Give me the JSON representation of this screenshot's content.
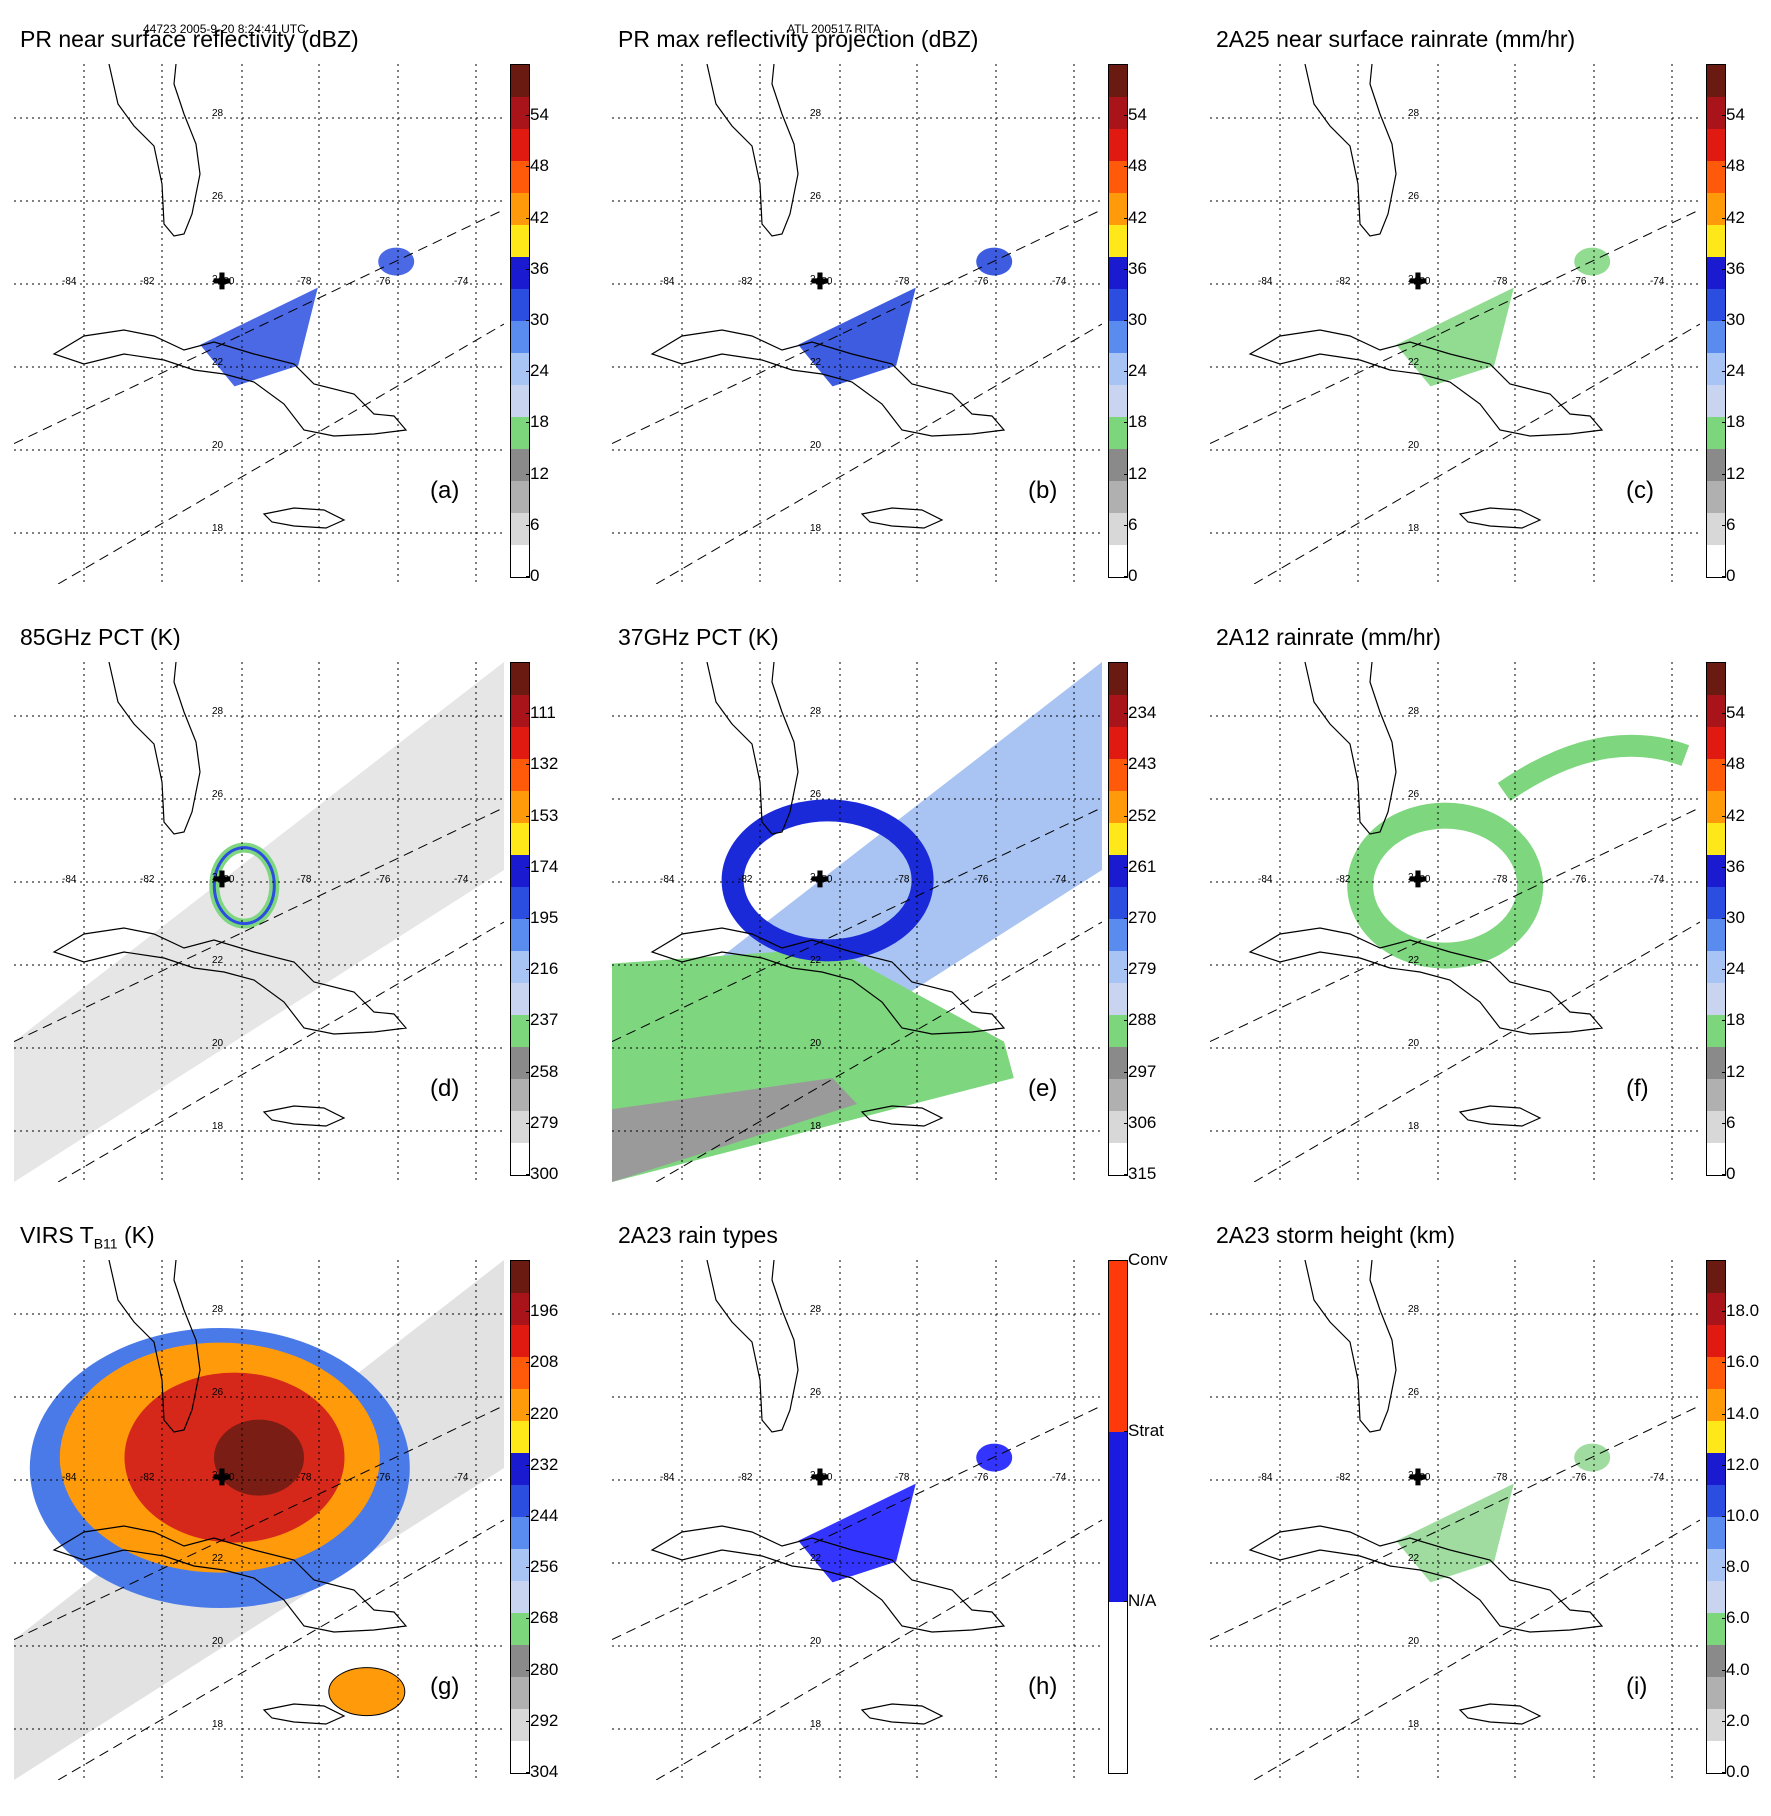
{
  "header": {
    "left": "44723 2005-9-20 8:24:41 UTC",
    "center": "ATL 200517 RITA"
  },
  "grid": {
    "lat_labels": [
      "28",
      "26",
      "24",
      "22",
      "20",
      "18"
    ],
    "lon_labels": [
      "-84",
      "-82",
      "-80",
      "-78",
      "-76",
      "-74"
    ]
  },
  "panels": [
    {
      "id": "a",
      "title": "PR near surface reflectivity (dBZ)",
      "label": "(a)",
      "ticks": [
        "54",
        "48",
        "42",
        "36",
        "30",
        "24",
        "18",
        "12",
        "6",
        "0"
      ],
      "fill": "swath-light",
      "data_color": "#2b4de0"
    },
    {
      "id": "b",
      "title": "PR max reflectivity projection (dBZ)",
      "label": "(b)",
      "ticks": [
        "54",
        "48",
        "42",
        "36",
        "30",
        "24",
        "18",
        "12",
        "6",
        "0"
      ],
      "fill": "swath-light",
      "data_color": "#1c3fd9"
    },
    {
      "id": "c",
      "title": "2A25 near surface rainrate (mm/hr)",
      "label": "(c)",
      "ticks": [
        "54",
        "48",
        "42",
        "36",
        "30",
        "24",
        "18",
        "12",
        "6",
        "0"
      ],
      "fill": "swath-light",
      "data_color": "#7fd67f"
    },
    {
      "id": "d",
      "title": "85GHz PCT (K)",
      "label": "(d)",
      "ticks": [
        "111",
        "132",
        "153",
        "174",
        "195",
        "216",
        "237",
        "258",
        "279",
        "300"
      ],
      "fill": "gray",
      "data_color": "#3b60e8"
    },
    {
      "id": "e",
      "title": "37GHz PCT (K)",
      "label": "(e)",
      "ticks": [
        "234",
        "243",
        "252",
        "261",
        "270",
        "279",
        "288",
        "297",
        "306",
        "315"
      ],
      "fill": "blue-green",
      "data_color": "#2b4de0"
    },
    {
      "id": "f",
      "title": "2A12 rainrate (mm/hr)",
      "label": "(f)",
      "ticks": [
        "54",
        "48",
        "42",
        "36",
        "30",
        "24",
        "18",
        "12",
        "6",
        "0"
      ],
      "fill": "none",
      "data_color": "#7fd67f"
    },
    {
      "id": "g",
      "title": "VIRS T",
      "title_sub": "B11",
      "title_tail": " (K)",
      "label": "(g)",
      "ticks": [
        "196",
        "208",
        "220",
        "232",
        "244",
        "256",
        "268",
        "280",
        "292",
        "304"
      ],
      "fill": "ir",
      "data_color": "#d62a1a"
    },
    {
      "id": "h",
      "title": "2A23 rain types",
      "label": "(h)",
      "ticks": [
        "Conv",
        "Strat",
        "N/A"
      ],
      "fill": "swath-light",
      "data_color": "#1010ff"
    },
    {
      "id": "i",
      "title": "2A23 storm height (km)",
      "label": "(i)",
      "ticks": [
        "18.0",
        "16.0",
        "14.0",
        "12.0",
        "10.0",
        "8.0",
        "6.0",
        "4.0",
        "2.0",
        "0.0"
      ],
      "fill": "swath-light",
      "data_color": "#8fd68f"
    }
  ],
  "colors": {
    "scale": [
      "#6b1a12",
      "#a8141a",
      "#e01a10",
      "#ff5a0a",
      "#ff9a0a",
      "#ffe81a",
      "#1a1ad0",
      "#2b4de0",
      "#5a8cf0",
      "#a8c4f4",
      "#c8d4f0",
      "#7cd67c",
      "#8a8a8a",
      "#b0b0b0",
      "#d8d8d8",
      "#ffffff"
    ],
    "rain_types": [
      "#ff3a0a",
      "#1a1ae0",
      "#ffffff"
    ],
    "land": "#000000"
  }
}
